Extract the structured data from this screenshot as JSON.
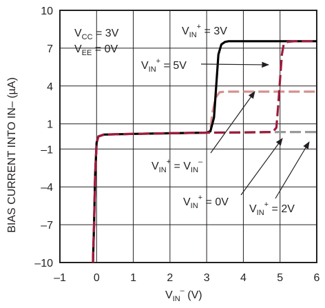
{
  "chart_data": {
    "type": "line",
    "xlabel": {
      "main": "V",
      "sub": "IN",
      "sup": "–",
      "unit": " (V)"
    },
    "ylabel": "BIAS CURRENT INTO IN– (µA)",
    "xlim": [
      -1,
      6
    ],
    "ylim": [
      -10,
      10
    ],
    "x_ticks": [
      -1,
      0,
      1,
      2,
      3,
      4,
      5,
      6
    ],
    "x_tick_labels": [
      "–1",
      "0",
      "1",
      "2",
      "3",
      "4",
      "5",
      "6"
    ],
    "y_ticks": [
      -10,
      -7,
      -4,
      -1,
      1,
      4,
      7,
      10
    ],
    "y_tick_labels": [
      "–10",
      "–7",
      "–4",
      "–1",
      "1",
      "4",
      "7",
      "10"
    ],
    "grid": true,
    "series": [
      {
        "color": "#000000",
        "dash": "solid",
        "x": [
          -0.1,
          -0.07,
          -0.04,
          0.0,
          0.05,
          0.2,
          1.0,
          2.0,
          3.0,
          3.1,
          3.2,
          3.26,
          3.32,
          3.4,
          3.5,
          3.6,
          4.0,
          5.0,
          6.0
        ],
        "y": [
          -10,
          -7,
          -3,
          -0.5,
          0.0,
          0.15,
          0.2,
          0.25,
          0.3,
          0.4,
          1.5,
          4.0,
          6.5,
          7.3,
          7.5,
          7.55,
          7.55,
          7.55,
          7.55
        ]
      },
      {
        "color": "#9e1b3c",
        "dash": "long",
        "x": [
          -0.1,
          -0.07,
          -0.04,
          0.0,
          0.05,
          0.2,
          1.0,
          2.0,
          3.0,
          4.0,
          4.8,
          4.9,
          4.95,
          5.0,
          5.05,
          5.1,
          5.2,
          5.4,
          6.0
        ],
        "y": [
          -10,
          -7,
          -3,
          -0.5,
          0.0,
          0.15,
          0.2,
          0.25,
          0.3,
          0.32,
          0.35,
          0.7,
          2.5,
          4.5,
          6.5,
          7.3,
          7.5,
          7.55,
          7.55
        ]
      },
      {
        "color": "#d4908e",
        "dash": "long",
        "x": [
          -0.1,
          -0.07,
          -0.04,
          0.0,
          0.05,
          0.2,
          1.0,
          2.0,
          3.0,
          3.1,
          3.15,
          3.25,
          3.35,
          3.5,
          4.0,
          5.0,
          6.0
        ],
        "y": [
          -10,
          -7,
          -3,
          -0.5,
          0.0,
          0.15,
          0.2,
          0.25,
          0.3,
          0.45,
          1.8,
          3.1,
          3.5,
          3.55,
          3.55,
          3.55,
          3.55
        ]
      },
      {
        "color": "#999999",
        "dash": "long",
        "x": [
          -0.1,
          -0.07,
          -0.04,
          0.0,
          0.05,
          0.2,
          1.0,
          2.0,
          3.0,
          4.0,
          5.0,
          6.0
        ],
        "y": [
          -10,
          -7,
          -3,
          -0.5,
          0.0,
          0.15,
          0.2,
          0.25,
          0.3,
          0.3,
          0.35,
          0.35
        ]
      }
    ],
    "annotations": [
      {
        "lines": [
          {
            "main": "V",
            "sub": "CC",
            "tail": " = 3V"
          },
          {
            "main": "V",
            "sub": "EE",
            "tail": " = 0V"
          }
        ]
      },
      {
        "main": "V",
        "sub": "IN",
        "sup": "+",
        "tail": " = 3V"
      },
      {
        "main": "V",
        "sub": "IN",
        "sup": "+",
        "tail": " = 5V"
      },
      {
        "main": "V",
        "sub": "IN",
        "sup": "+",
        "tail": " = V",
        "sub2": "IN",
        "sup2": "–"
      },
      {
        "main": "V",
        "sub": "IN",
        "sup": "+",
        "tail": " = 0V"
      },
      {
        "main": "V",
        "sub": "IN",
        "sup": "+",
        "tail": " = 2V"
      }
    ]
  }
}
